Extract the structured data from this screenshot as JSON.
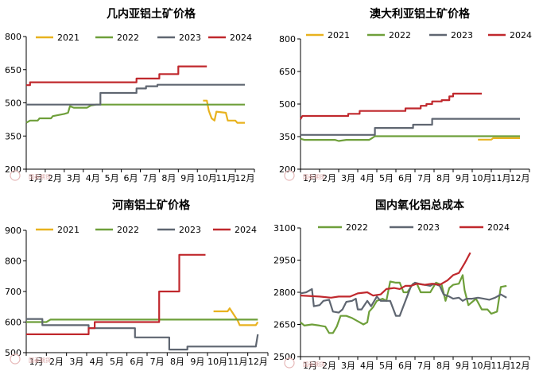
{
  "colors": {
    "2021": "#e8b21e",
    "2022": "#6e9f3a",
    "2023": "#5f6671",
    "2024": "#c0282d",
    "watermark": "#e6b8b8"
  },
  "watermark_text": "国泰期货",
  "chart_data": [
    {
      "type": "line",
      "title": "几内亚铝土矿价格",
      "xlabel": "",
      "ylabel": "",
      "x_categories": [
        "1月",
        "2月",
        "3月",
        "4月",
        "5月",
        "6月",
        "7月",
        "8月",
        "9月",
        "10月",
        "11月",
        "12月"
      ],
      "ylim": [
        200,
        800
      ],
      "yticks": [
        200,
        350,
        500,
        650,
        800
      ],
      "grid": false,
      "legend": "top",
      "series": [
        {
          "name": "2021",
          "color": "#e8b21e",
          "points": [
            [
              10.3,
              510
            ],
            [
              10.5,
              510
            ],
            [
              10.6,
              465
            ],
            [
              10.75,
              430
            ],
            [
              10.9,
              420
            ],
            [
              11.0,
              460
            ],
            [
              11.5,
              455
            ],
            [
              11.6,
              420
            ],
            [
              12.0,
              420
            ],
            [
              12.1,
              410
            ],
            [
              12.5,
              410
            ]
          ]
        },
        {
          "name": "2022",
          "color": "#6e9f3a",
          "points": [
            [
              1.0,
              410
            ],
            [
              1.2,
              420
            ],
            [
              1.6,
              420
            ],
            [
              1.7,
              430
            ],
            [
              2.3,
              430
            ],
            [
              2.4,
              440
            ],
            [
              2.7,
              445
            ],
            [
              3.0,
              450
            ],
            [
              3.2,
              455
            ],
            [
              3.3,
              485
            ],
            [
              3.5,
              478
            ],
            [
              4.2,
              478
            ],
            [
              4.4,
              488
            ],
            [
              4.7,
              492
            ],
            [
              12.5,
              492
            ]
          ]
        },
        {
          "name": "2023",
          "color": "#5f6671",
          "points": [
            [
              1.0,
              492
            ],
            [
              4.9,
              492
            ],
            [
              4.9,
              545
            ],
            [
              6.8,
              545
            ],
            [
              6.8,
              565
            ],
            [
              7.3,
              565
            ],
            [
              7.3,
              575
            ],
            [
              7.9,
              575
            ],
            [
              7.9,
              582
            ],
            [
              12.5,
              582
            ]
          ]
        },
        {
          "name": "2024",
          "color": "#c0282d",
          "points": [
            [
              1.0,
              580
            ],
            [
              1.2,
              580
            ],
            [
              1.2,
              593
            ],
            [
              6.8,
              593
            ],
            [
              6.8,
              610
            ],
            [
              8.0,
              610
            ],
            [
              8.0,
              630
            ],
            [
              9.0,
              630
            ],
            [
              9.0,
              665
            ],
            [
              10.5,
              665
            ]
          ]
        }
      ]
    },
    {
      "type": "line",
      "title": "澳大利亚铝土矿价格",
      "xlabel": "",
      "ylabel": "",
      "x_categories": [
        "1月",
        "2月",
        "3月",
        "4月",
        "5月",
        "6月",
        "7月",
        "8月",
        "9月",
        "10月",
        "11月",
        "12月"
      ],
      "ylim": [
        200,
        800
      ],
      "yticks": [
        200,
        350,
        500,
        650,
        800
      ],
      "grid": false,
      "legend": "top",
      "series": [
        {
          "name": "2021",
          "color": "#e8b21e",
          "points": [
            [
              10.3,
              336
            ],
            [
              11.0,
              336
            ],
            [
              11.1,
              343
            ],
            [
              12.5,
              343
            ]
          ]
        },
        {
          "name": "2022",
          "color": "#6e9f3a",
          "points": [
            [
              1.0,
              340
            ],
            [
              1.2,
              335
            ],
            [
              2.8,
              335
            ],
            [
              3.0,
              330
            ],
            [
              3.4,
              335
            ],
            [
              4.6,
              335
            ],
            [
              4.7,
              340
            ],
            [
              4.9,
              352
            ],
            [
              12.5,
              352
            ]
          ]
        },
        {
          "name": "2023",
          "color": "#5f6671",
          "points": [
            [
              1.0,
              358
            ],
            [
              4.9,
              358
            ],
            [
              4.9,
              390
            ],
            [
              6.9,
              390
            ],
            [
              6.9,
              405
            ],
            [
              7.9,
              405
            ],
            [
              7.9,
              432
            ],
            [
              12.5,
              432
            ]
          ]
        },
        {
          "name": "2024",
          "color": "#c0282d",
          "points": [
            [
              1.0,
              430
            ],
            [
              1.1,
              445
            ],
            [
              3.5,
              445
            ],
            [
              3.5,
              455
            ],
            [
              4.1,
              455
            ],
            [
              4.1,
              468
            ],
            [
              6.5,
              468
            ],
            [
              6.5,
              480
            ],
            [
              7.3,
              480
            ],
            [
              7.3,
              492
            ],
            [
              7.6,
              492
            ],
            [
              7.6,
              500
            ],
            [
              7.9,
              500
            ],
            [
              7.9,
              512
            ],
            [
              8.4,
              512
            ],
            [
              8.4,
              518
            ],
            [
              8.8,
              518
            ],
            [
              8.8,
              535
            ],
            [
              9.0,
              535
            ],
            [
              9.0,
              548
            ],
            [
              10.5,
              548
            ]
          ]
        }
      ]
    },
    {
      "type": "line",
      "title": "河南铝土矿价格",
      "xlabel": "",
      "ylabel": "",
      "x_categories": [
        "1月",
        "2月",
        "3月",
        "4月",
        "5月",
        "6月",
        "7月",
        "8月",
        "9月",
        "10月",
        "11月",
        "12月"
      ],
      "ylim": [
        500,
        900
      ],
      "yticks": [
        500,
        600,
        700,
        800,
        900
      ],
      "grid": false,
      "legend": "top",
      "series": [
        {
          "name": "2021",
          "color": "#e8b21e",
          "points": [
            [
              10.3,
              635
            ],
            [
              11.0,
              635
            ],
            [
              11.1,
              645
            ],
            [
              11.3,
              625
            ],
            [
              11.5,
              605
            ],
            [
              11.6,
              590
            ],
            [
              12.4,
              590
            ],
            [
              12.5,
              600
            ]
          ]
        },
        {
          "name": "2022",
          "color": "#6e9f3a",
          "points": [
            [
              1.0,
              600
            ],
            [
              1.5,
              600
            ],
            [
              2.0,
              600
            ],
            [
              2.2,
              608
            ],
            [
              2.5,
              608
            ],
            [
              12.5,
              608
            ]
          ]
        },
        {
          "name": "2023",
          "color": "#5f6671",
          "points": [
            [
              1.0,
              610
            ],
            [
              1.8,
              610
            ],
            [
              1.8,
              590
            ],
            [
              4.1,
              590
            ],
            [
              4.1,
              580
            ],
            [
              6.4,
              580
            ],
            [
              6.4,
              550
            ],
            [
              8.1,
              550
            ],
            [
              8.1,
              510
            ],
            [
              9.0,
              510
            ],
            [
              9.0,
              520
            ],
            [
              12.4,
              520
            ],
            [
              12.5,
              560
            ]
          ]
        },
        {
          "name": "2024",
          "color": "#c0282d",
          "points": [
            [
              1.0,
              560
            ],
            [
              4.1,
              560
            ],
            [
              4.1,
              580
            ],
            [
              4.4,
              580
            ],
            [
              4.4,
              600
            ],
            [
              7.6,
              600
            ],
            [
              7.6,
              700
            ],
            [
              8.6,
              700
            ],
            [
              8.6,
              820
            ],
            [
              9.9,
              820
            ]
          ]
        }
      ]
    },
    {
      "type": "line",
      "title": "国内氧化铝总成本",
      "xlabel": "",
      "ylabel": "",
      "x_categories": [
        "1月",
        "2月",
        "3月",
        "4月",
        "5月",
        "6月",
        "7月",
        "8月",
        "9月",
        "10月",
        "11月",
        "12月"
      ],
      "ylim": [
        2500,
        3100
      ],
      "yticks": [
        2500,
        2650,
        2800,
        2950,
        3100
      ],
      "grid": false,
      "legend": "top",
      "series": [
        {
          "name": "2022",
          "color": "#6e9f3a",
          "points": [
            [
              1.0,
              2660
            ],
            [
              1.2,
              2645
            ],
            [
              1.6,
              2650
            ],
            [
              2.0,
              2645
            ],
            [
              2.3,
              2640
            ],
            [
              2.5,
              2610
            ],
            [
              2.7,
              2610
            ],
            [
              2.9,
              2640
            ],
            [
              3.1,
              2690
            ],
            [
              3.4,
              2690
            ],
            [
              3.7,
              2680
            ],
            [
              4.0,
              2665
            ],
            [
              4.3,
              2650
            ],
            [
              4.5,
              2660
            ],
            [
              4.6,
              2710
            ],
            [
              4.8,
              2730
            ],
            [
              5.0,
              2760
            ],
            [
              5.3,
              2770
            ],
            [
              5.5,
              2760
            ],
            [
              5.7,
              2850
            ],
            [
              6.0,
              2845
            ],
            [
              6.2,
              2845
            ],
            [
              6.4,
              2800
            ],
            [
              6.6,
              2800
            ],
            [
              6.9,
              2840
            ],
            [
              7.1,
              2840
            ],
            [
              7.3,
              2800
            ],
            [
              7.6,
              2800
            ],
            [
              7.8,
              2800
            ],
            [
              8.1,
              2845
            ],
            [
              8.4,
              2835
            ],
            [
              8.6,
              2760
            ],
            [
              8.8,
              2820
            ],
            [
              9.0,
              2835
            ],
            [
              9.3,
              2840
            ],
            [
              9.5,
              2880
            ],
            [
              9.6,
              2810
            ],
            [
              9.8,
              2740
            ],
            [
              10.2,
              2770
            ],
            [
              10.5,
              2720
            ],
            [
              10.8,
              2720
            ],
            [
              11.0,
              2700
            ],
            [
              11.3,
              2710
            ],
            [
              11.5,
              2825
            ],
            [
              11.8,
              2830
            ]
          ]
        },
        {
          "name": "2023",
          "color": "#5f6671",
          "points": [
            [
              1.0,
              2795
            ],
            [
              1.3,
              2800
            ],
            [
              1.6,
              2815
            ],
            [
              1.7,
              2735
            ],
            [
              2.0,
              2740
            ],
            [
              2.2,
              2760
            ],
            [
              2.5,
              2765
            ],
            [
              2.7,
              2710
            ],
            [
              3.0,
              2705
            ],
            [
              3.2,
              2720
            ],
            [
              3.4,
              2755
            ],
            [
              3.7,
              2760
            ],
            [
              3.9,
              2770
            ],
            [
              4.0,
              2720
            ],
            [
              4.2,
              2720
            ],
            [
              4.5,
              2760
            ],
            [
              4.7,
              2735
            ],
            [
              5.0,
              2780
            ],
            [
              5.2,
              2760
            ],
            [
              5.5,
              2760
            ],
            [
              5.7,
              2760
            ],
            [
              6.0,
              2690
            ],
            [
              6.2,
              2690
            ],
            [
              6.5,
              2760
            ],
            [
              6.8,
              2830
            ],
            [
              7.0,
              2845
            ],
            [
              7.2,
              2840
            ],
            [
              7.5,
              2835
            ],
            [
              7.8,
              2830
            ],
            [
              8.0,
              2840
            ],
            [
              8.3,
              2830
            ],
            [
              8.5,
              2790
            ],
            [
              8.8,
              2780
            ],
            [
              9.0,
              2770
            ],
            [
              9.3,
              2775
            ],
            [
              9.5,
              2760
            ],
            [
              9.7,
              2770
            ],
            [
              10.0,
              2770
            ],
            [
              10.3,
              2775
            ],
            [
              10.6,
              2770
            ],
            [
              10.9,
              2765
            ],
            [
              11.2,
              2775
            ],
            [
              11.5,
              2790
            ],
            [
              11.8,
              2775
            ]
          ]
        },
        {
          "name": "2024",
          "color": "#c0282d",
          "points": [
            [
              1.0,
              2785
            ],
            [
              2.0,
              2780
            ],
            [
              2.6,
              2775
            ],
            [
              3.0,
              2780
            ],
            [
              3.6,
              2780
            ],
            [
              4.0,
              2795
            ],
            [
              4.5,
              2800
            ],
            [
              4.8,
              2785
            ],
            [
              5.2,
              2790
            ],
            [
              5.5,
              2815
            ],
            [
              5.9,
              2820
            ],
            [
              6.2,
              2815
            ],
            [
              6.5,
              2830
            ],
            [
              6.8,
              2830
            ],
            [
              7.1,
              2840
            ],
            [
              7.5,
              2835
            ],
            [
              7.9,
              2840
            ],
            [
              8.3,
              2835
            ],
            [
              8.7,
              2855
            ],
            [
              9.0,
              2880
            ],
            [
              9.3,
              2890
            ],
            [
              9.6,
              2935
            ],
            [
              9.9,
              2985
            ]
          ]
        }
      ]
    }
  ]
}
